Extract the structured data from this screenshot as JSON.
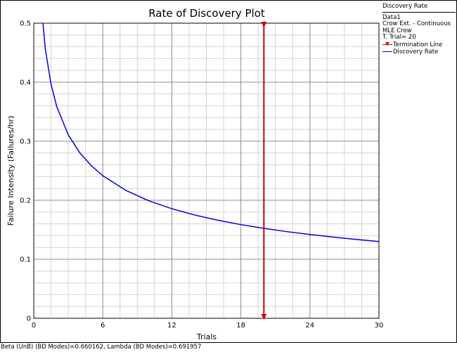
{
  "chart_data": {
    "type": "line",
    "title": "Rate of Discovery Plot",
    "xlabel": "Trials",
    "ylabel": "Failure Intensity (Failures/hr)",
    "xlim": [
      0,
      30
    ],
    "ylim": [
      0,
      0.5
    ],
    "x_ticks": [
      0,
      6,
      12,
      18,
      24,
      30
    ],
    "x_tick_labels": [
      "0",
      "6",
      "12",
      "18",
      "24",
      "30"
    ],
    "y_ticks": [
      0,
      0.1,
      0.2,
      0.3,
      0.4,
      0.5
    ],
    "y_tick_labels": [
      "0",
      "0.1",
      "0.2",
      "0.3",
      "0.4",
      "0.5"
    ],
    "x_minor_per_major": 4,
    "y_minor_per_major": 5,
    "grid": true,
    "legend_position": "right",
    "series": [
      {
        "name": "Discovery Rate",
        "color": "#0000dd",
        "x": [
          0.8,
          1,
          1.5,
          2,
          3,
          4,
          5,
          6,
          8,
          10,
          12,
          14,
          16,
          18,
          20,
          22,
          24,
          26,
          28,
          30
        ],
        "y": [
          0.5,
          0.4568,
          0.3966,
          0.3585,
          0.3108,
          0.2804,
          0.2585,
          0.2416,
          0.2168,
          0.199,
          0.1856,
          0.1749,
          0.1661,
          0.1587,
          0.1524,
          0.1468,
          0.142,
          0.1376,
          0.1336,
          0.13
        ]
      }
    ],
    "termination_line": {
      "name": "Termination Line",
      "x": 20,
      "color": "#cc0000"
    }
  },
  "legend": {
    "title": "Discovery Rate",
    "lines": [
      "Data1",
      "Crow Ext. - Continuous",
      "MLE Crow",
      "T. Trial= 20"
    ],
    "items": [
      {
        "label": "Termination Line",
        "color": "#cc0000"
      },
      {
        "label": "Discovery Rate",
        "color": "#0000dd"
      }
    ]
  },
  "footer": {
    "text": "Beta (UnB) (BD Modes)=0.660162, Lambda (BD Modes)=0.691957"
  }
}
